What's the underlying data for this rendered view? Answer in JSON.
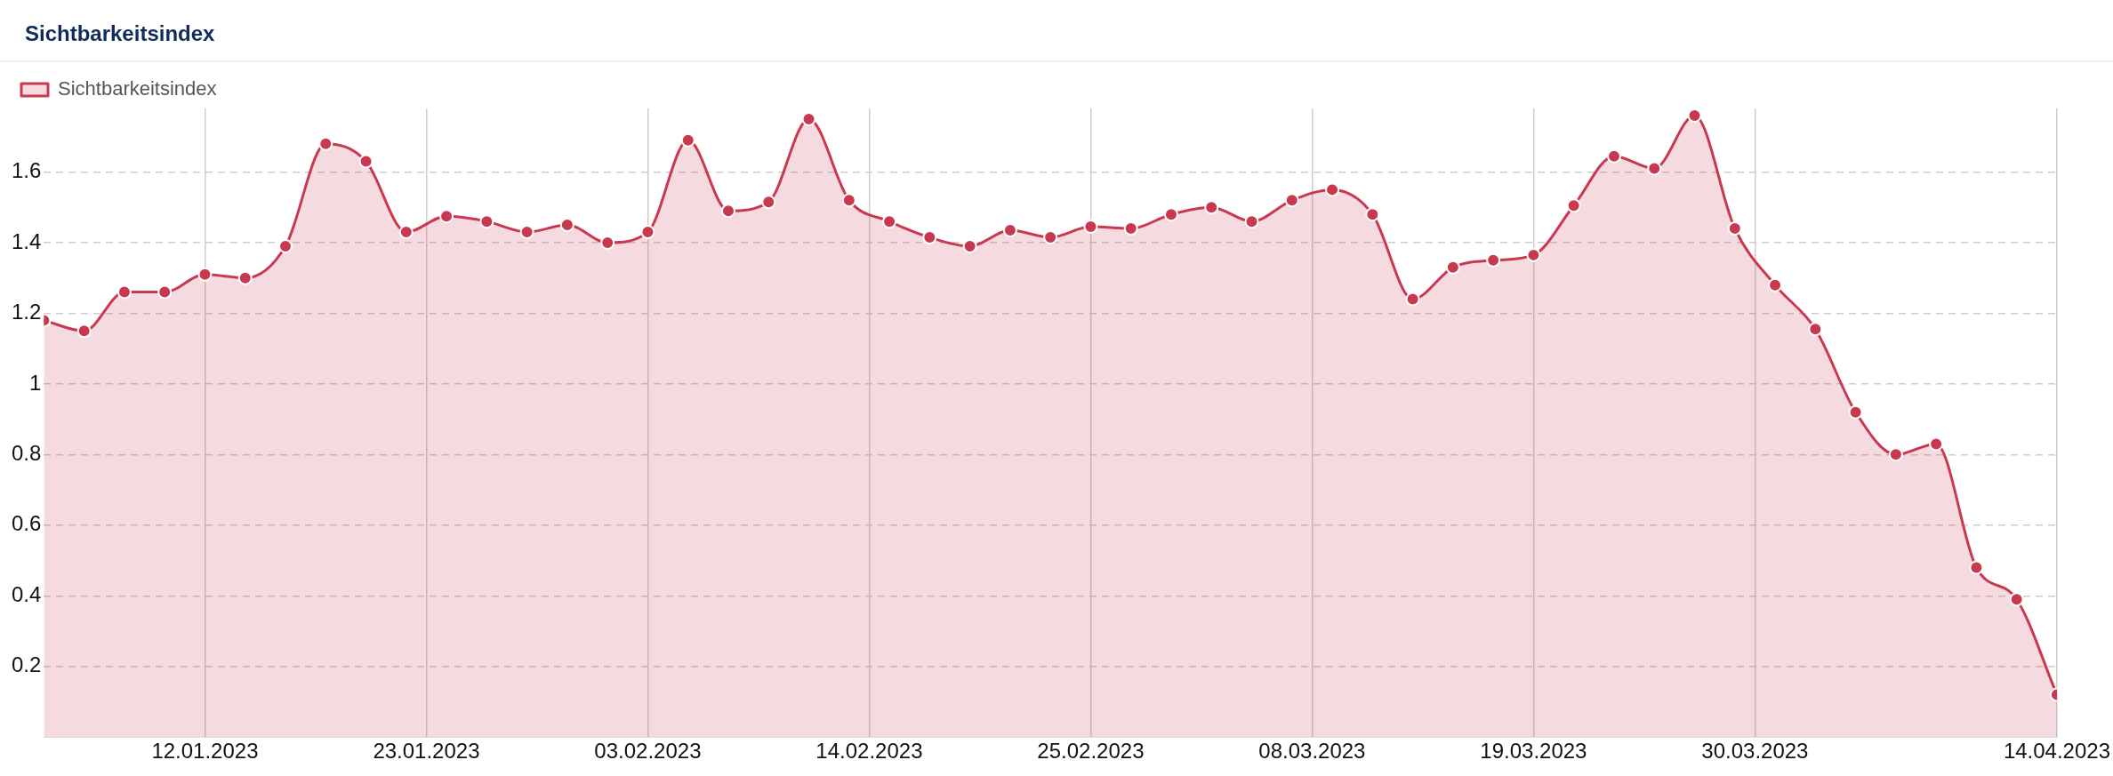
{
  "chart_data": {
    "type": "area",
    "title": "Sichtbarkeitsindex",
    "x": [
      "2023-01-04",
      "2023-01-06",
      "2023-01-08",
      "2023-01-10",
      "2023-01-12",
      "2023-01-14",
      "2023-01-16",
      "2023-01-18",
      "2023-01-20",
      "2023-01-22",
      "2023-01-24",
      "2023-01-26",
      "2023-01-28",
      "2023-01-30",
      "2023-02-01",
      "2023-02-03",
      "2023-02-05",
      "2023-02-07",
      "2023-02-09",
      "2023-02-11",
      "2023-02-13",
      "2023-02-15",
      "2023-02-17",
      "2023-02-19",
      "2023-02-21",
      "2023-02-23",
      "2023-02-25",
      "2023-02-27",
      "2023-03-01",
      "2023-03-03",
      "2023-03-05",
      "2023-03-07",
      "2023-03-09",
      "2023-03-11",
      "2023-03-13",
      "2023-03-15",
      "2023-03-17",
      "2023-03-19",
      "2023-03-21",
      "2023-03-23",
      "2023-03-25",
      "2023-03-27",
      "2023-03-29",
      "2023-03-31",
      "2023-04-02",
      "2023-04-04",
      "2023-04-06",
      "2023-04-08",
      "2023-04-10",
      "2023-04-12",
      "2023-04-14"
    ],
    "series": [
      {
        "name": "Sichtbarkeitsindex",
        "color": "#c8384f",
        "values": [
          1.18,
          1.15,
          1.26,
          1.26,
          1.31,
          1.3,
          1.39,
          1.68,
          1.63,
          1.43,
          1.475,
          1.46,
          1.43,
          1.45,
          1.4,
          1.43,
          1.69,
          1.49,
          1.515,
          1.75,
          1.52,
          1.46,
          1.415,
          1.39,
          1.435,
          1.415,
          1.445,
          1.44,
          1.48,
          1.5,
          1.46,
          1.52,
          1.55,
          1.48,
          1.24,
          1.33,
          1.35,
          1.365,
          1.505,
          1.645,
          1.61,
          1.76,
          1.44,
          1.28,
          1.155,
          0.92,
          0.8,
          0.83,
          0.48,
          0.39,
          0.12
        ]
      }
    ],
    "xlim": [
      "2023-01-04",
      "2023-04-14"
    ],
    "xticks": [
      {
        "value": "2023-01-12",
        "label": "12.01.2023"
      },
      {
        "value": "2023-01-23",
        "label": "23.01.2023"
      },
      {
        "value": "2023-02-03",
        "label": "03.02.2023"
      },
      {
        "value": "2023-02-14",
        "label": "14.02.2023"
      },
      {
        "value": "2023-02-25",
        "label": "25.02.2023"
      },
      {
        "value": "2023-03-08",
        "label": "08.03.2023"
      },
      {
        "value": "2023-03-19",
        "label": "19.03.2023"
      },
      {
        "value": "2023-03-30",
        "label": "30.03.2023"
      },
      {
        "value": "2023-04-14",
        "label": "14.04.2023"
      }
    ],
    "ylim": [
      0,
      1.78
    ],
    "yticks": [
      0.2,
      0.4,
      0.6,
      0.8,
      1,
      1.2,
      1.4,
      1.6
    ],
    "grid": true,
    "legend": "top left",
    "marker": "circle",
    "line_style": "solid"
  }
}
